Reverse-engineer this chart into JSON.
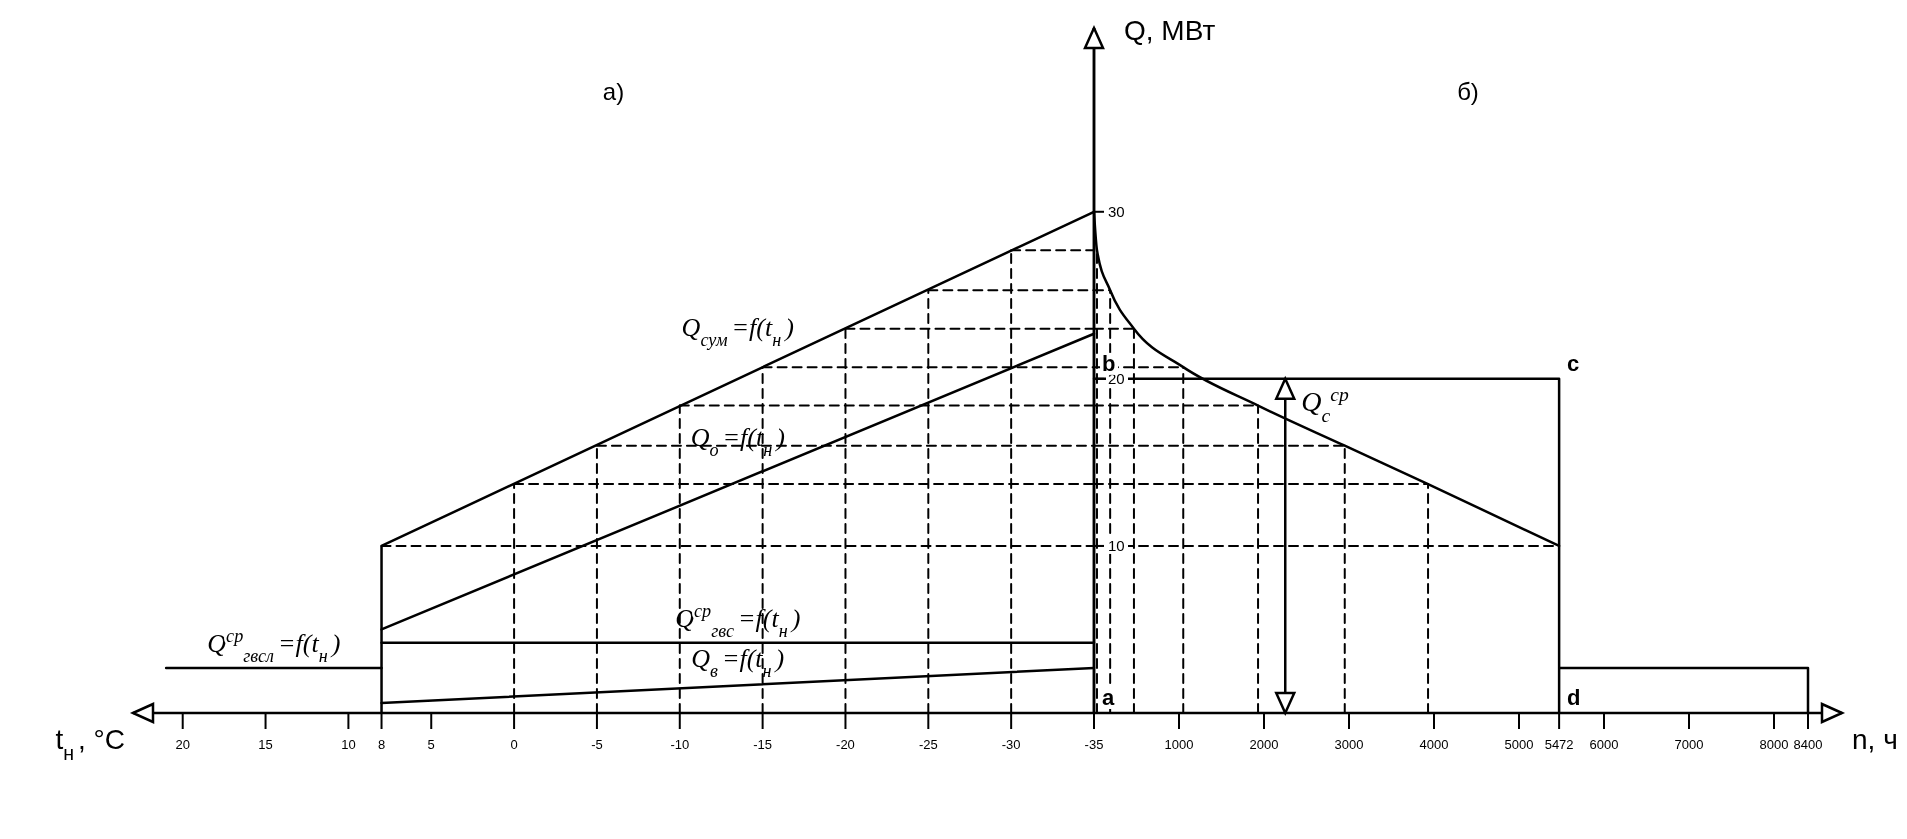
{
  "chart_data": [
    {
      "type": "line",
      "title": "а)",
      "xlabel": "t$_{н}$, °C",
      "xlim": [
        23,
        -35
      ],
      "ylim": [
        0,
        41
      ],
      "xticks": [
        20,
        15,
        10,
        8,
        5,
        0,
        -5,
        -10,
        -15,
        -20,
        -25,
        -30,
        -35
      ],
      "tick_labels": "x",
      "series": [
        {
          "name": "Q$_{сум}$=f(t$_{н}$)",
          "color": "#000000",
          "line_style": "solid",
          "x": [
            8,
            8,
            -35
          ],
          "values": [
            0,
            10,
            30
          ]
        },
        {
          "name": "Q$_{о}$=f(t$_{н}$)",
          "color": "#000000",
          "line_style": "solid",
          "x": [
            8,
            -35
          ],
          "values": [
            5.0,
            22.7
          ]
        },
        {
          "name": "Q$^{ср}$$_{гвс}$=f(t$_{н}$)",
          "color": "#000000",
          "line_style": "solid",
          "x": [
            8,
            -35
          ],
          "values": [
            4.2,
            4.2
          ]
        },
        {
          "name": "Q$_{в}$=f(t$_{н}$)",
          "color": "#000000",
          "line_style": "solid",
          "x": [
            8,
            -35
          ],
          "values": [
            0.6,
            2.7
          ]
        },
        {
          "name": "Q$^{ср}$$_{гвсл}$=f(t$_{н}$)",
          "color": "#000000",
          "line_style": "solid",
          "x": [
            21,
            8
          ],
          "values": [
            2.7,
            2.7
          ]
        },
        {
          "color": "#000000",
          "line_style": "dashed",
          "x": [
            0,
            0
          ],
          "values": [
            0,
            13.7
          ]
        },
        {
          "color": "#000000",
          "line_style": "dashed",
          "x": [
            -5,
            -5
          ],
          "values": [
            0,
            16.0
          ]
        },
        {
          "color": "#000000",
          "line_style": "dashed",
          "x": [
            -10,
            -10
          ],
          "values": [
            0,
            18.4
          ]
        },
        {
          "color": "#000000",
          "line_style": "dashed",
          "x": [
            -15,
            -15
          ],
          "values": [
            0,
            20.7
          ]
        },
        {
          "color": "#000000",
          "line_style": "dashed",
          "x": [
            -20,
            -20
          ],
          "values": [
            0,
            23.0
          ]
        },
        {
          "color": "#000000",
          "line_style": "dashed",
          "x": [
            -25,
            -25
          ],
          "values": [
            0,
            25.3
          ]
        },
        {
          "color": "#000000",
          "line_style": "dashed",
          "x": [
            -30,
            -30
          ],
          "values": [
            0,
            27.7
          ]
        },
        {
          "color": "#000000",
          "line_style": "dashed",
          "x": [
            8,
            -35
          ],
          "values": [
            10,
            10
          ]
        },
        {
          "color": "#000000",
          "line_style": "dashed",
          "x": [
            0,
            -35
          ],
          "values": [
            13.7,
            13.7
          ]
        },
        {
          "color": "#000000",
          "line_style": "dashed",
          "x": [
            -5,
            -35
          ],
          "values": [
            16.0,
            16.0
          ]
        },
        {
          "color": "#000000",
          "line_style": "dashed",
          "x": [
            -10,
            -35
          ],
          "values": [
            18.4,
            18.4
          ]
        },
        {
          "color": "#000000",
          "line_style": "dashed",
          "x": [
            -15,
            -35
          ],
          "values": [
            20.7,
            20.7
          ]
        },
        {
          "color": "#000000",
          "line_style": "dashed",
          "x": [
            -20,
            -35
          ],
          "values": [
            23.0,
            23.0
          ]
        },
        {
          "color": "#000000",
          "line_style": "dashed",
          "x": [
            -25,
            -35
          ],
          "values": [
            25.3,
            25.3
          ]
        },
        {
          "color": "#000000",
          "line_style": "dashed",
          "x": [
            -30,
            -35
          ],
          "values": [
            27.7,
            27.7
          ]
        }
      ]
    },
    {
      "type": "line",
      "title": "б)",
      "xlabel": "n, ч",
      "ylabel": "Q, МВт",
      "xlim": [
        0,
        8800
      ],
      "ylim": [
        0,
        41
      ],
      "yticks": [
        10,
        20,
        30
      ],
      "xticks": [
        1000,
        2000,
        3000,
        4000,
        5000,
        5472,
        6000,
        7000,
        8000,
        8400
      ],
      "series": [
        {
          "color": "#000000",
          "line_style": "solid",
          "x": [
            0,
            35,
            190,
            470,
            1050,
            1930,
            2950,
            3930,
            5472
          ],
          "values": [
            30,
            27.7,
            25.3,
            23.0,
            20.7,
            18.4,
            16.0,
            13.7,
            10
          ]
        },
        {
          "color": "#000000",
          "line_style": "solid",
          "x": [
            0,
            5472,
            5472,
            5472,
            8400,
            8400
          ],
          "values": [
            20,
            20,
            0,
            2.7,
            2.7,
            0
          ]
        },
        {
          "color": "#000000",
          "line_style": "dashed",
          "x": [
            35,
            35
          ],
          "values": [
            0,
            27.7
          ]
        },
        {
          "color": "#000000",
          "line_style": "dashed",
          "x": [
            190,
            190
          ],
          "values": [
            0,
            25.3
          ]
        },
        {
          "color": "#000000",
          "line_style": "dashed",
          "x": [
            470,
            470
          ],
          "values": [
            0,
            23.0
          ]
        },
        {
          "color": "#000000",
          "line_style": "dashed",
          "x": [
            1050,
            1050
          ],
          "values": [
            0,
            20.7
          ]
        },
        {
          "color": "#000000",
          "line_style": "dashed",
          "x": [
            1930,
            1930
          ],
          "values": [
            0,
            18.4
          ]
        },
        {
          "color": "#000000",
          "line_style": "dashed",
          "x": [
            2950,
            2950
          ],
          "values": [
            0,
            16.0
          ]
        },
        {
          "color": "#000000",
          "line_style": "dashed",
          "x": [
            3930,
            3930
          ],
          "values": [
            0,
            13.7
          ]
        },
        {
          "color": "#000000",
          "line_style": "dashed",
          "x": [
            0,
            190
          ],
          "values": [
            25.3,
            25.3
          ]
        },
        {
          "color": "#000000",
          "line_style": "dashed",
          "x": [
            0,
            470
          ],
          "values": [
            23.0,
            23.0
          ]
        },
        {
          "color": "#000000",
          "line_style": "dashed",
          "x": [
            0,
            1050
          ],
          "values": [
            20.7,
            20.7
          ]
        },
        {
          "color": "#000000",
          "line_style": "dashed",
          "x": [
            0,
            1930
          ],
          "values": [
            18.4,
            18.4
          ]
        },
        {
          "color": "#000000",
          "line_style": "dashed",
          "x": [
            0,
            2950
          ],
          "values": [
            16.0,
            16.0
          ]
        },
        {
          "color": "#000000",
          "line_style": "dashed",
          "x": [
            0,
            3930
          ],
          "values": [
            13.7,
            13.7
          ]
        },
        {
          "color": "#000000",
          "line_style": "dashed",
          "x": [
            0,
            5472
          ],
          "values": [
            10,
            10
          ]
        }
      ],
      "annotations": [
        {
          "text": "a",
          "x": 0,
          "y": 0
        },
        {
          "text": "b",
          "x": 0,
          "y": 20
        },
        {
          "text": "c",
          "x": 5472,
          "y": 20
        },
        {
          "text": "d",
          "x": 5472,
          "y": 0
        },
        {
          "text": "Q$_{с}$$^{ср}$",
          "x": 2250,
          "y": 20
        }
      ]
    }
  ]
}
